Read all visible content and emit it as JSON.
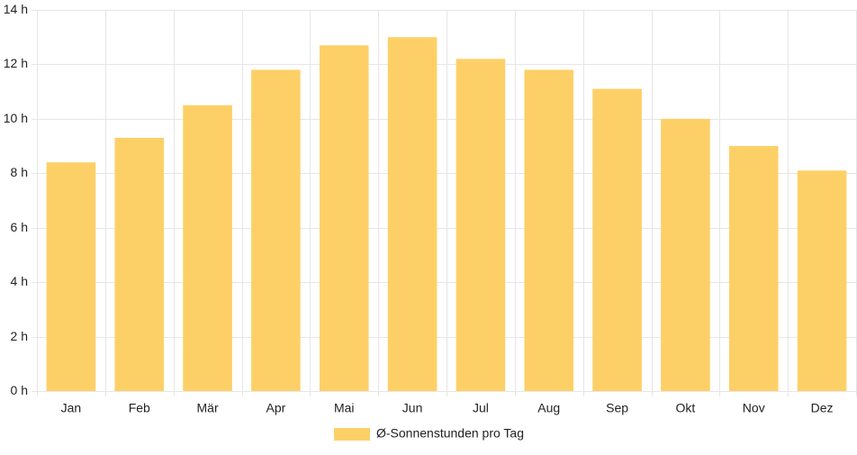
{
  "chart_data": {
    "type": "bar",
    "categories": [
      "Jan",
      "Feb",
      "Mär",
      "Apr",
      "Mai",
      "Jun",
      "Jul",
      "Aug",
      "Sep",
      "Okt",
      "Nov",
      "Dez"
    ],
    "series": [
      {
        "name": "Ø-Sonnenstunden pro Tag",
        "values": [
          8.4,
          9.3,
          10.5,
          11.8,
          12.7,
          13.0,
          12.2,
          11.8,
          11.1,
          10.0,
          9.0,
          8.1
        ],
        "color": "#fdd067"
      }
    ],
    "ylim": [
      0,
      14
    ],
    "yticks": [
      {
        "value": 0,
        "label": "0 h"
      },
      {
        "value": 2,
        "label": "2 h"
      },
      {
        "value": 4,
        "label": "4 h"
      },
      {
        "value": 6,
        "label": "6 h"
      },
      {
        "value": 8,
        "label": "8 h"
      },
      {
        "value": 10,
        "label": "10 h"
      },
      {
        "value": 12,
        "label": "12 h"
      },
      {
        "value": 14,
        "label": "14 h"
      }
    ],
    "grid": true,
    "grid_color": "#e6e6e6",
    "legend_position": "bottom-center"
  }
}
